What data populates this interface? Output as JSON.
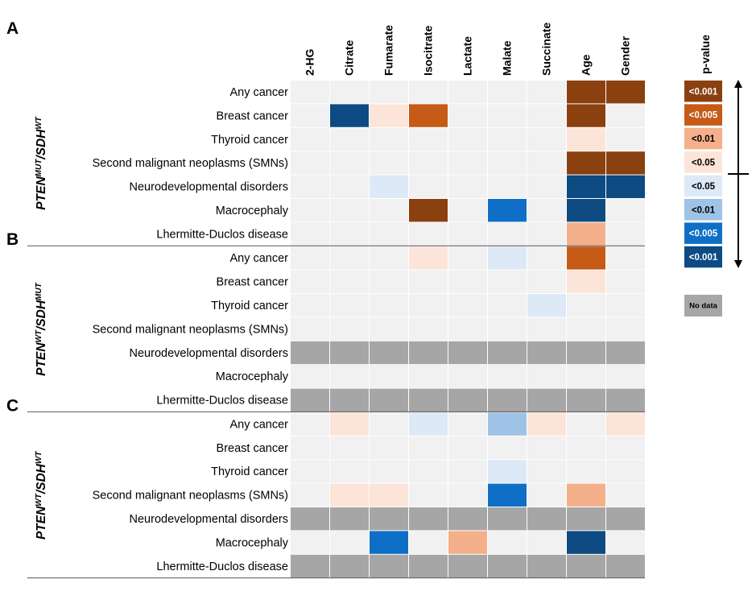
{
  "chart_data": {
    "type": "heatmap",
    "columns": [
      "2-HG",
      "Citrate",
      "Fumarate",
      "Isocitrate",
      "Lactate",
      "Malate",
      "Succinate",
      "Age",
      "Gender"
    ],
    "colors": {
      "empty": "#f1f1f1",
      "no_data": "#a6a6a6",
      "pos_lt0.001": "#8b4010",
      "pos_lt0.005": "#c65a17",
      "pos_lt0.01": "#f3b08a",
      "pos_lt0.05": "#fce4d8",
      "neg_lt0.05": "#dde9f6",
      "neg_lt0.01": "#9fc3e6",
      "neg_lt0.005": "#0f6fc6",
      "neg_lt0.001": "#0d4b82"
    },
    "panels": [
      {
        "label": "A",
        "group_label": {
          "gene1": "PTEN",
          "sup1": "MUT",
          "sep": "/",
          "gene2": "SDH",
          "sup2": "WT"
        },
        "rows": [
          {
            "name": "Any cancer",
            "cells": [
              "",
              "",
              "",
              "",
              "",
              "",
              "",
              "pos_lt0.001",
              "pos_lt0.001"
            ]
          },
          {
            "name": "Breast cancer",
            "cells": [
              "",
              "neg_lt0.001",
              "pos_lt0.05",
              "pos_lt0.005",
              "",
              "",
              "",
              "pos_lt0.001",
              ""
            ]
          },
          {
            "name": "Thyroid cancer",
            "cells": [
              "",
              "",
              "",
              "",
              "",
              "",
              "",
              "pos_lt0.05",
              ""
            ]
          },
          {
            "name": "Second malignant neoplasms (SMNs)",
            "cells": [
              "",
              "",
              "",
              "",
              "",
              "",
              "",
              "pos_lt0.001",
              "pos_lt0.001"
            ]
          },
          {
            "name": "Neurodevelopmental disorders",
            "cells": [
              "",
              "",
              "neg_lt0.05",
              "",
              "",
              "",
              "",
              "neg_lt0.001",
              "neg_lt0.001"
            ]
          },
          {
            "name": "Macrocephaly",
            "cells": [
              "",
              "",
              "",
              "pos_lt0.001",
              "",
              "neg_lt0.005",
              "",
              "neg_lt0.001",
              ""
            ]
          },
          {
            "name": "Lhermitte-Duclos disease",
            "cells": [
              "",
              "",
              "",
              "",
              "",
              "",
              "",
              "pos_lt0.01",
              ""
            ]
          }
        ]
      },
      {
        "label": "B",
        "group_label": {
          "gene1": "PTEN",
          "sup1": "WT",
          "sep": "/",
          "gene2": "SDH",
          "sup2": "MUT"
        },
        "rows": [
          {
            "name": "Any cancer",
            "cells": [
              "",
              "",
              "",
              "pos_lt0.05",
              "",
              "neg_lt0.05",
              "",
              "pos_lt0.005",
              ""
            ]
          },
          {
            "name": "Breast cancer",
            "cells": [
              "",
              "",
              "",
              "",
              "",
              "",
              "",
              "pos_lt0.05",
              ""
            ]
          },
          {
            "name": "Thyroid cancer",
            "cells": [
              "",
              "",
              "",
              "",
              "",
              "",
              "neg_lt0.05",
              "",
              ""
            ]
          },
          {
            "name": "Second malignant neoplasms (SMNs)",
            "cells": [
              "",
              "",
              "",
              "",
              "",
              "",
              "",
              "",
              ""
            ]
          },
          {
            "name": "Neurodevelopmental disorders",
            "cells": [
              "no_data",
              "no_data",
              "no_data",
              "no_data",
              "no_data",
              "no_data",
              "no_data",
              "no_data",
              "no_data"
            ]
          },
          {
            "name": "Macrocephaly",
            "cells": [
              "",
              "",
              "",
              "",
              "",
              "",
              "",
              "",
              ""
            ]
          },
          {
            "name": "Lhermitte-Duclos disease",
            "cells": [
              "no_data",
              "no_data",
              "no_data",
              "no_data",
              "no_data",
              "no_data",
              "no_data",
              "no_data",
              "no_data"
            ]
          }
        ]
      },
      {
        "label": "C",
        "group_label": {
          "gene1": "PTEN",
          "sup1": "WT",
          "sep": "/",
          "gene2": "SDH",
          "sup2": "WT"
        },
        "rows": [
          {
            "name": "Any cancer",
            "cells": [
              "",
              "pos_lt0.05",
              "",
              "neg_lt0.05",
              "",
              "neg_lt0.01",
              "pos_lt0.05",
              "",
              "pos_lt0.05"
            ]
          },
          {
            "name": "Breast cancer",
            "cells": [
              "",
              "",
              "",
              "",
              "",
              "",
              "",
              "",
              ""
            ]
          },
          {
            "name": "Thyroid cancer",
            "cells": [
              "",
              "",
              "",
              "",
              "",
              "neg_lt0.05",
              "",
              "",
              ""
            ]
          },
          {
            "name": "Second malignant neoplasms (SMNs)",
            "cells": [
              "",
              "pos_lt0.05",
              "pos_lt0.05",
              "",
              "",
              "neg_lt0.005",
              "",
              "pos_lt0.01",
              ""
            ]
          },
          {
            "name": "Neurodevelopmental disorders",
            "cells": [
              "no_data",
              "no_data",
              "no_data",
              "no_data",
              "no_data",
              "no_data",
              "no_data",
              "no_data",
              "no_data"
            ]
          },
          {
            "name": "Macrocephaly",
            "cells": [
              "",
              "",
              "neg_lt0.005",
              "",
              "pos_lt0.01",
              "",
              "",
              "neg_lt0.001",
              ""
            ]
          },
          {
            "name": "Lhermitte-Duclos disease",
            "cells": [
              "no_data",
              "no_data",
              "no_data",
              "no_data",
              "no_data",
              "no_data",
              "no_data",
              "no_data",
              "no_data"
            ]
          }
        ]
      }
    ],
    "legend": {
      "title": "p-value",
      "entries": [
        {
          "key": "pos_lt0.001",
          "label": "<0.001",
          "text_color": "#ffffff"
        },
        {
          "key": "pos_lt0.005",
          "label": "<0.005",
          "text_color": "#ffffff"
        },
        {
          "key": "pos_lt0.01",
          "label": "<0.01",
          "text_color": "#000000"
        },
        {
          "key": "pos_lt0.05",
          "label": "<0.05",
          "text_color": "#000000"
        },
        {
          "key": "neg_lt0.05",
          "label": "<0.05",
          "text_color": "#000000"
        },
        {
          "key": "neg_lt0.01",
          "label": "<0.01",
          "text_color": "#000000"
        },
        {
          "key": "neg_lt0.005",
          "label": "<0.005",
          "text_color": "#ffffff"
        },
        {
          "key": "neg_lt0.001",
          "label": "<0.001",
          "text_color": "#ffffff"
        }
      ],
      "no_data_label": "No data"
    }
  }
}
